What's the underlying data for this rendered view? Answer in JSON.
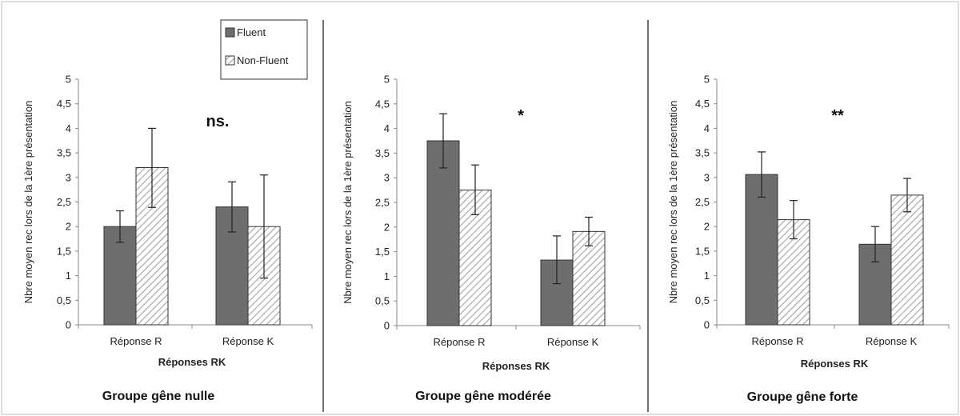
{
  "chart_data": [
    {
      "type": "bar",
      "group_title": "Groupe gêne nulle",
      "significance": "ns.",
      "xlabel": "Réponses RK",
      "ylabel": "Nbre moyen rec lors de la 1ère présentation",
      "categories": [
        "Réponse R",
        "Réponse K"
      ],
      "yticks": [
        "0",
        "0,5",
        "1",
        "1,5",
        "2",
        "2,5",
        "3",
        "3,5",
        "4",
        "4,5",
        "5"
      ],
      "ylim": [
        0,
        5
      ],
      "series": [
        {
          "name": "Fluent",
          "values": [
            2.0,
            2.4
          ],
          "err_low": [
            1.68,
            1.89
          ],
          "err_high": [
            2.32,
            2.91
          ]
        },
        {
          "name": "Non-Fluent",
          "values": [
            3.2,
            2.0
          ],
          "err_low": [
            2.39,
            0.95
          ],
          "err_high": [
            4.0,
            3.05
          ]
        }
      ]
    },
    {
      "type": "bar",
      "group_title": "Groupe gêne modérée",
      "significance": "*",
      "xlabel": "Réponses RK",
      "ylabel": "Nbre moyen rec lors de la 1ère présentation",
      "categories": [
        "Réponse R",
        "Réponse K"
      ],
      "yticks": [
        "0",
        "0,5",
        "1",
        "1,5",
        "2",
        "2,5",
        "3",
        "3,5",
        "4",
        "4,5",
        "5"
      ],
      "ylim": [
        0,
        5
      ],
      "series": [
        {
          "name": "Fluent",
          "values": [
            3.75,
            1.33
          ],
          "err_low": [
            3.2,
            0.85
          ],
          "err_high": [
            4.3,
            1.82
          ]
        },
        {
          "name": "Non-Fluent",
          "values": [
            2.75,
            1.91
          ],
          "err_low": [
            2.25,
            1.62
          ],
          "err_high": [
            3.26,
            2.2
          ]
        }
      ]
    },
    {
      "type": "bar",
      "group_title": "Groupe gêne forte",
      "significance": "**",
      "xlabel": "Réponses RK",
      "ylabel": "Nbre moyen rec lors de la 1ère présentation",
      "categories": [
        "Réponse R",
        "Réponse K"
      ],
      "yticks": [
        "0",
        "0,5",
        "1",
        "1,5",
        "2",
        "2,5",
        "3",
        "3,5",
        "4",
        "4,5",
        "5"
      ],
      "ylim": [
        0,
        5
      ],
      "series": [
        {
          "name": "Fluent",
          "values": [
            3.06,
            1.64
          ],
          "err_low": [
            2.6,
            1.28
          ],
          "err_high": [
            3.52,
            2.0
          ]
        },
        {
          "name": "Non-Fluent",
          "values": [
            2.14,
            2.64
          ],
          "err_low": [
            1.75,
            2.3
          ],
          "err_high": [
            2.53,
            2.98
          ]
        }
      ]
    }
  ],
  "legend": {
    "items": [
      {
        "label": "Fluent",
        "color": "#6e6e6e",
        "pattern": "solid"
      },
      {
        "label": "Non-Fluent",
        "color": "#bdbdbd",
        "pattern": "hatched"
      }
    ]
  },
  "colors": {
    "fluent": "#6e6e6e",
    "hatch": "#9a9a9a",
    "axis": "#888888"
  }
}
